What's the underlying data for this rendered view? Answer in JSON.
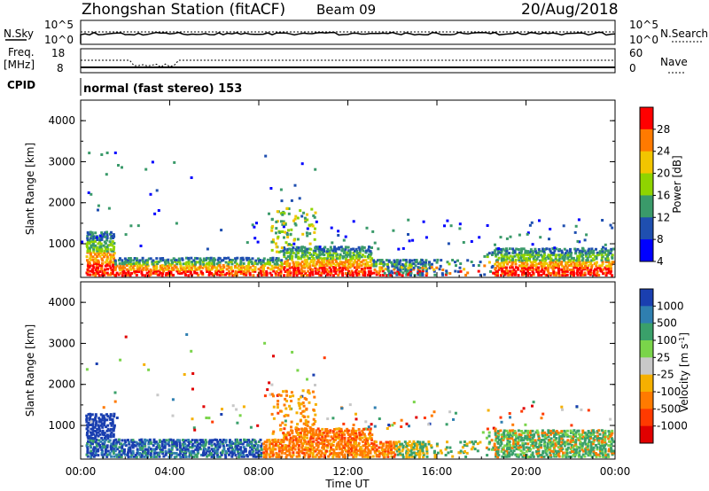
{
  "header": {
    "station": "Zhongshan Station (fitACF)",
    "beam": "Beam 09",
    "date": "20/Aug/2018"
  },
  "aux": {
    "nsky_label": "N.Sky",
    "nsky_ticks": [
      "10^5",
      "10^0"
    ],
    "nsearch_label": "N.Search",
    "nsearch_ticks": [
      "10^5",
      "10^0"
    ],
    "freq_label": "Freq.",
    "freq_unit": "[MHz]",
    "freq_ticks": [
      "18",
      "8"
    ],
    "nave_label": "Nave",
    "nave_ticks": [
      "60",
      "0"
    ],
    "cpid_label": "CPID",
    "cpid_value": "normal (fast stereo) 153"
  },
  "chart_data": [
    {
      "type": "heatmap",
      "name": "power",
      "ylabel": "Slant Range [km]",
      "xlabel": "Time UT",
      "xticks": [
        "00:00",
        "04:00",
        "08:00",
        "12:00",
        "16:00",
        "20:00",
        "00:00"
      ],
      "x_hours": [
        0,
        4,
        8,
        12,
        16,
        20,
        24
      ],
      "ylim": [
        180,
        4500
      ],
      "yticks": [
        1000,
        2000,
        3000,
        4000
      ],
      "colorbar": {
        "label": "Power [dB]",
        "ticks": [
          "28",
          "24",
          "20",
          "16",
          "12",
          "8",
          "4"
        ],
        "colors": [
          "#ff0000",
          "#ff7a00",
          "#f2c500",
          "#8fd400",
          "#3a9a6a",
          "#1f4fb0",
          "#0000ff"
        ]
      }
    },
    {
      "type": "heatmap",
      "name": "velocity",
      "ylabel": "Slant Range [km]",
      "xlabel": "Time UT",
      "xticks": [
        "00:00",
        "04:00",
        "08:00",
        "12:00",
        "16:00",
        "20:00",
        "00:00"
      ],
      "x_hours": [
        0,
        4,
        8,
        12,
        16,
        20,
        24
      ],
      "ylim": [
        180,
        4500
      ],
      "yticks": [
        1000,
        2000,
        3000,
        4000
      ],
      "colorbar": {
        "label": "Velocity [m s",
        "label_sup": "-1",
        "label_end": "]",
        "ticks": [
          "1000",
          "500",
          "100",
          "25",
          "-25",
          "-100",
          "-500",
          "-1000"
        ],
        "colors": [
          "#1a3fb0",
          "#2f7fb0",
          "#3aa06a",
          "#7ad44a",
          "#c8c8c8",
          "#f5b000",
          "#ff7a00",
          "#ff3a00",
          "#e00000"
        ]
      }
    }
  ],
  "time_label": "Time UT"
}
